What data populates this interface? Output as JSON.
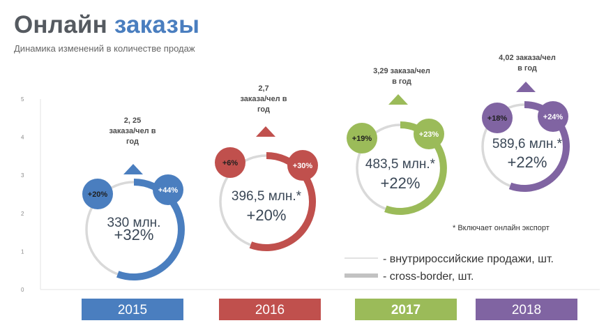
{
  "page": {
    "title_part1": "Онлайн",
    "title_part2": "заказы",
    "subtitle": "Динамика изменений в количестве продаж"
  },
  "colors": {
    "title_dark": "#555a60",
    "title_accent": "#4a7ebf",
    "domestic_ring": "#d9d9d9",
    "2015": "#4a7ebf",
    "2016": "#c0504d",
    "2017": "#9bbb59",
    "2018": "#8064a2"
  },
  "chart_data": {
    "type": "infographic",
    "yticks": [
      "0",
      "1",
      "2",
      "3",
      "4",
      "5"
    ],
    "ylim": [
      0,
      5
    ],
    "years": [
      {
        "year": "2015",
        "orders_main": "330 млн.",
        "orders_growth": "+32%",
        "domestic_growth": "+20%",
        "crossborder_growth": "+44%",
        "per_capita_lines": [
          "2, 25",
          "заказа/чел в",
          "год"
        ],
        "per_capita_value": 2.25,
        "color": "#4a7ebf"
      },
      {
        "year": "2016",
        "orders_main": "396,5 млн.*",
        "orders_growth": "+20%",
        "domestic_growth": "+6%",
        "crossborder_growth": "+30%",
        "per_capita_lines": [
          "2,7",
          "заказа/чел в",
          "год"
        ],
        "per_capita_value": 2.7,
        "color": "#c0504d"
      },
      {
        "year": "2017",
        "orders_main": "483,5 млн.*",
        "orders_growth": "+22%",
        "domestic_growth": "+19%",
        "crossborder_growth": "+23%",
        "per_capita_lines": [
          "3,29 заказа/чел",
          "в год"
        ],
        "per_capita_value": 3.29,
        "color": "#9bbb59"
      },
      {
        "year": "2018",
        "orders_main": "589,6 млн.*",
        "orders_growth": "+22%",
        "domestic_growth": "+18%",
        "crossborder_growth": "+24%",
        "per_capita_lines": [
          "4,02 заказа/чел",
          "в год"
        ],
        "per_capita_value": 4.02,
        "color": "#8064a2"
      }
    ],
    "legend": [
      {
        "label": "- внутрироссийские продажи, шт.",
        "style": "thin-line"
      },
      {
        "label": "- cross-border, шт.",
        "style": "thick-line"
      }
    ],
    "footnote": "* Включает онлайн экспорт"
  }
}
